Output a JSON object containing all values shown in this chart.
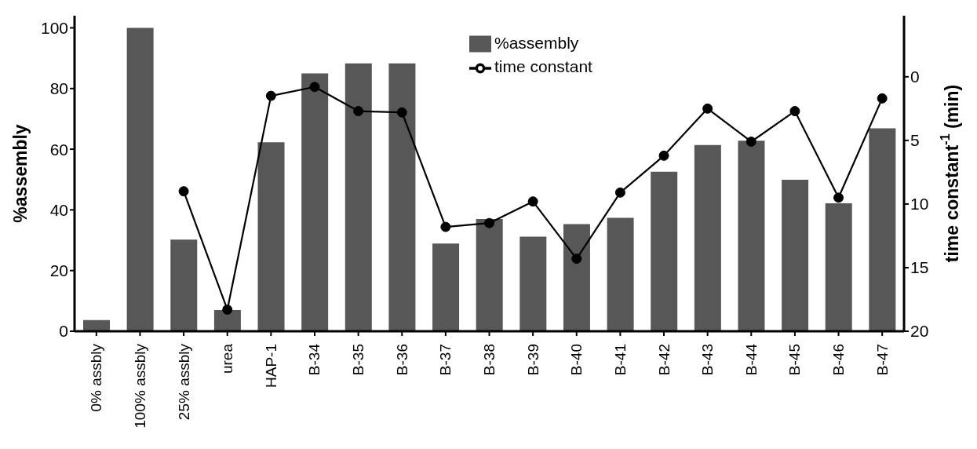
{
  "chart_data": {
    "type": "bar",
    "ylabel": "%assembly",
    "y2label": "time constant$^{-1}$ (min)",
    "categories": [
      "0% assbly",
      "100% assbly",
      "25% assbly",
      "urea",
      "HAP-1",
      "B-34",
      "B-35",
      "B-36",
      "B-37",
      "B-38",
      "B-39",
      "B-40",
      "B-41",
      "B-42",
      "B-43",
      "B-44",
      "B-45",
      "B-46",
      "B-47"
    ],
    "series": [
      {
        "name": "%assembly",
        "color": "#575757",
        "values": [
          3.7,
          100,
          30.2,
          7,
          62.3,
          85,
          88.3,
          88.3,
          28.9,
          37,
          31.2,
          35.3,
          37.4,
          52.6,
          61.4,
          62.8,
          49.9,
          42.2,
          66.9
        ]
      },
      {
        "name": "time constant",
        "type": "line",
        "axis": "y2",
        "color": "#000000",
        "marker": "circle",
        "line_style": "solid",
        "values": [
          null,
          null,
          9.0,
          18.3,
          1.5,
          0.8,
          2.7,
          2.8,
          11.8,
          11.5,
          9.8,
          14.3,
          9.1,
          6.2,
          2.5,
          5.1,
          2.7,
          9.5,
          1.7
        ]
      }
    ],
    "ylim": [
      0,
      104
    ],
    "yticks": [
      0,
      20,
      40,
      60,
      80,
      100
    ],
    "y2lim": [
      20,
      -4.8
    ],
    "y2ticks": [
      0,
      5,
      10,
      15,
      20
    ],
    "grid": false,
    "legend": "top"
  }
}
